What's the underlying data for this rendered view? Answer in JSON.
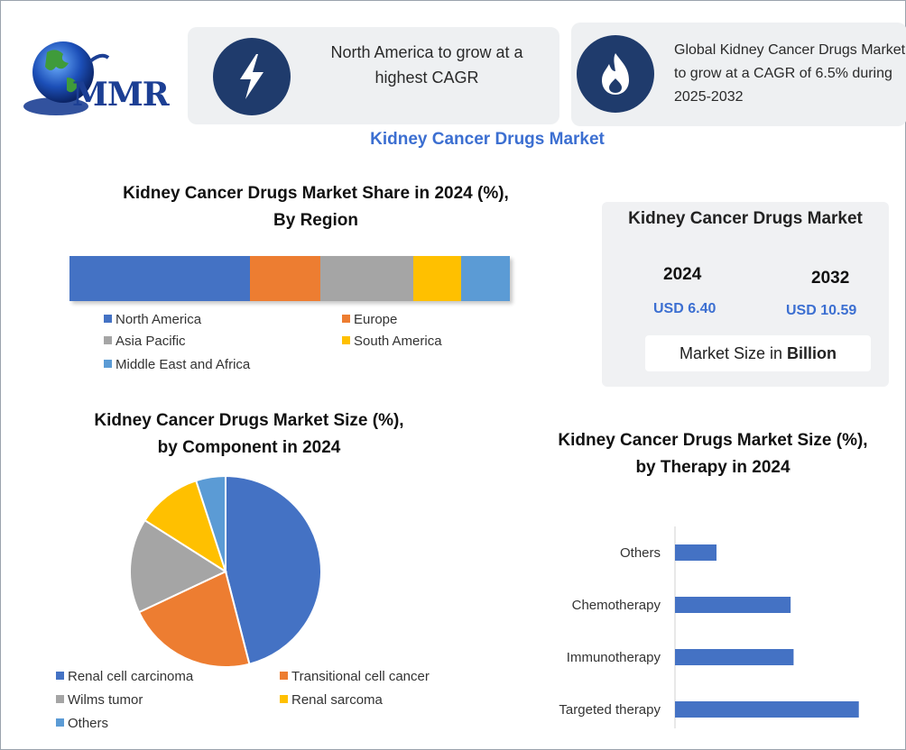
{
  "logo": {
    "text": "MMR"
  },
  "cards": [
    {
      "icon": "lightning-icon",
      "text": "North America to grow at a highest CAGR"
    },
    {
      "icon": "flame-icon",
      "text": "Global Kidney Cancer Drugs Market to grow at a CAGR of 6.5% during 2025-2032"
    }
  ],
  "main_title": "Kidney Cancer Drugs Market",
  "market_size": {
    "title": "Kidney Cancer Drugs Market",
    "year1": "2024",
    "value1": "USD 6.40",
    "year2": "2032",
    "value2": "USD 10.59",
    "note_prefix": "Market Size in ",
    "note_bold": "Billion"
  },
  "colors": {
    "blue": "#4472c4",
    "orange": "#ed7d31",
    "gray": "#a5a5a5",
    "yellow": "#ffc000",
    "lightblue": "#5b9bd5",
    "accent": "#3c6fd1",
    "badge": "#1f3b6c"
  },
  "chart_data": [
    {
      "type": "bar",
      "stacked": true,
      "orientation": "horizontal",
      "title_line1": "Kidney Cancer Drugs Market Share in 2024 (%),",
      "title_line2": "By Region",
      "series": [
        {
          "name": "North America",
          "value": 41,
          "color": "#4472c4"
        },
        {
          "name": "Europe",
          "value": 16,
          "color": "#ed7d31"
        },
        {
          "name": "Asia Pacific",
          "value": 21,
          "color": "#a5a5a5"
        },
        {
          "name": "South America",
          "value": 11,
          "color": "#ffc000"
        },
        {
          "name": "Middle East and Africa",
          "value": 11,
          "color": "#5b9bd5"
        }
      ],
      "legend_position": "bottom"
    },
    {
      "type": "pie",
      "title_line1": "Kidney Cancer Drugs Market Size (%),",
      "title_line2": "by Component in 2024",
      "slices": [
        {
          "name": "Renal cell carcinoma",
          "value": 46,
          "color": "#4472c4"
        },
        {
          "name": "Transitional cell cancer",
          "value": 22,
          "color": "#ed7d31"
        },
        {
          "name": "Wilms tumor",
          "value": 16,
          "color": "#a5a5a5"
        },
        {
          "name": "Renal sarcoma",
          "value": 11,
          "color": "#ffc000"
        },
        {
          "name": "Others",
          "value": 5,
          "color": "#5b9bd5"
        }
      ],
      "legend_position": "bottom"
    },
    {
      "type": "bar",
      "orientation": "horizontal",
      "title_line1": "Kidney Cancer Drugs Market Size (%),",
      "title_line2": "by Therapy in 2024",
      "categories": [
        "Others",
        "Chemotherapy",
        "Immunotherapy",
        "Targeted therapy"
      ],
      "values": [
        7,
        19.5,
        20,
        31
      ],
      "xlim": [
        0,
        35
      ],
      "color": "#4472c4",
      "grid": false
    }
  ]
}
